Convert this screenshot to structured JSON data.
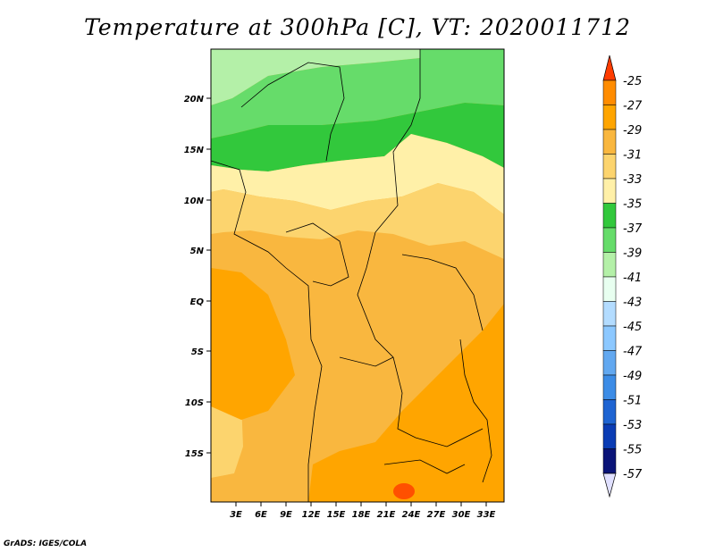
{
  "title": "Temperature at 300hPa [C], VT: 2020011712",
  "credit": "GrADS: IGES/COLA",
  "map": {
    "lat_ticks": [
      "20N",
      "15N",
      "10N",
      "5N",
      "EQ",
      "5S",
      "10S",
      "15S"
    ],
    "lon_ticks": [
      "3E",
      "6E",
      "9E",
      "12E",
      "15E",
      "18E",
      "21E",
      "24E",
      "27E",
      "30E",
      "33E"
    ]
  },
  "colorbar": {
    "labels": [
      "-25",
      "-27",
      "-29",
      "-31",
      "-33",
      "-35",
      "-37",
      "-39",
      "-41",
      "-43",
      "-45",
      "-47",
      "-49",
      "-51",
      "-53",
      "-55",
      "-57"
    ],
    "colors": [
      "#ff5000",
      "#ff8c00",
      "#ffa500",
      "#f9b73f",
      "#fcd46e",
      "#fff0a8",
      "#32c83c",
      "#66dc6a",
      "#b4f0a8",
      "#e8fff0",
      "#b3dcff",
      "#8cc8ff",
      "#62a8f0",
      "#3c8ce6",
      "#1e64d2",
      "#0a3cb4",
      "#0a1478"
    ],
    "top_arrow_color": "#ff3c00",
    "bottom_arrow_color": "#e0e0ff"
  }
}
